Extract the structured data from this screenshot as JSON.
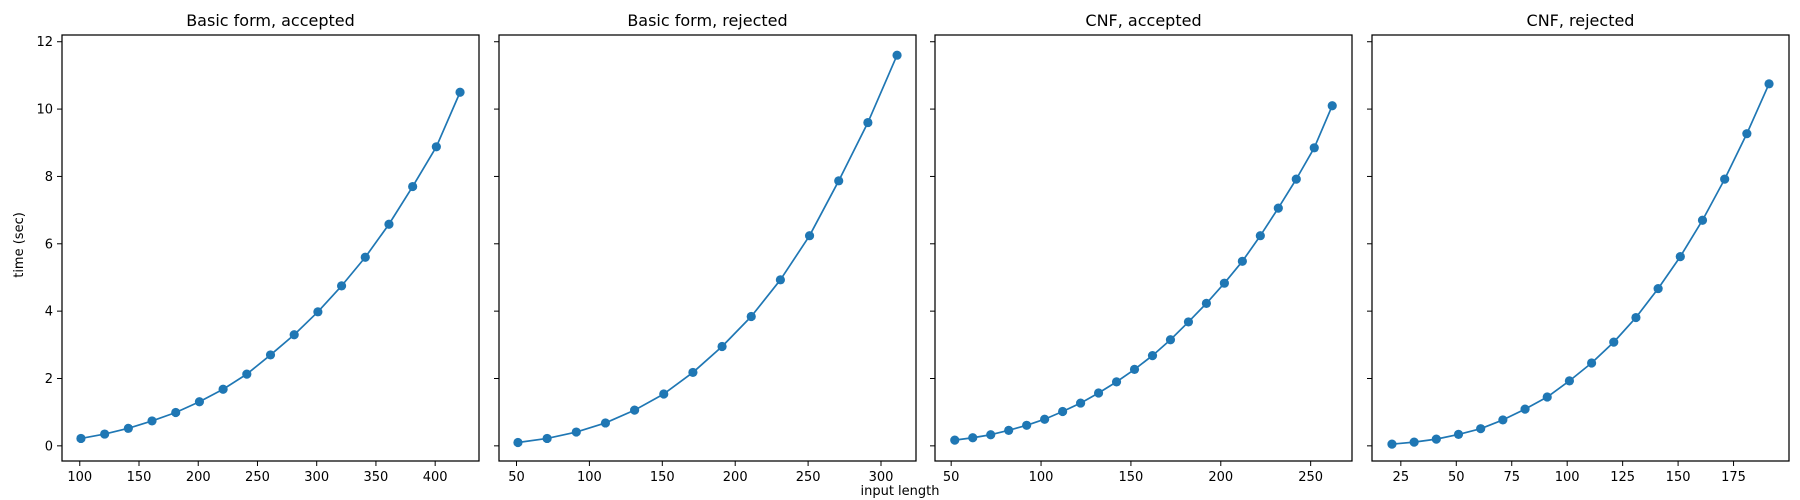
{
  "figure": {
    "ylabel": "time (sec)",
    "xlabel": "input length",
    "series_color": "#1f77b4",
    "shared_y": true
  },
  "chart_data": [
    {
      "type": "line",
      "title": "Basic form, accepted",
      "x": [
        101,
        121,
        141,
        161,
        181,
        201,
        221,
        241,
        261,
        281,
        301,
        321,
        341,
        361,
        381,
        401,
        421
      ],
      "y": [
        0.22,
        0.35,
        0.52,
        0.74,
        0.99,
        1.31,
        1.68,
        2.13,
        2.7,
        3.3,
        3.98,
        4.75,
        5.6,
        6.58,
        7.7,
        8.88,
        10.5
      ],
      "xlim": [
        85,
        437
      ],
      "xticks": [
        100,
        150,
        200,
        250,
        300,
        350,
        400
      ],
      "ylim": [
        -0.45,
        12.2
      ],
      "yticks": [
        0,
        2,
        4,
        6,
        8,
        10,
        12
      ],
      "xlabel": "",
      "ylabel": "time (sec)",
      "grid": false
    },
    {
      "type": "line",
      "title": "Basic form, rejected",
      "x": [
        51,
        71,
        91,
        111,
        131,
        151,
        171,
        191,
        211,
        231,
        251,
        271,
        291,
        311
      ],
      "y": [
        0.1,
        0.22,
        0.41,
        0.68,
        1.06,
        1.54,
        2.18,
        2.95,
        3.84,
        4.93,
        6.24,
        7.87,
        9.6,
        11.6
      ],
      "xlim": [
        38,
        324
      ],
      "xticks": [
        50,
        100,
        150,
        200,
        250,
        300
      ],
      "ylim": [
        -0.45,
        12.2
      ],
      "yticks": [
        0,
        2,
        4,
        6,
        8,
        10,
        12
      ],
      "xlabel": "",
      "ylabel": "",
      "grid": false
    },
    {
      "type": "line",
      "title": "CNF, accepted",
      "x": [
        52,
        62,
        72,
        82,
        92,
        102,
        112,
        122,
        132,
        142,
        152,
        162,
        172,
        182,
        192,
        202,
        212,
        222,
        232,
        242,
        252,
        262
      ],
      "y": [
        0.17,
        0.24,
        0.33,
        0.46,
        0.61,
        0.79,
        1.02,
        1.27,
        1.57,
        1.9,
        2.27,
        2.68,
        3.15,
        3.68,
        4.23,
        4.83,
        5.48,
        6.24,
        7.06,
        7.92,
        8.85,
        10.1
      ],
      "xlim": [
        41,
        273
      ],
      "xticks": [
        50,
        100,
        150,
        200,
        250
      ],
      "ylim": [
        -0.45,
        12.2
      ],
      "yticks": [
        0,
        2,
        4,
        6,
        8,
        10,
        12
      ],
      "xlabel": "input length",
      "ylabel": "",
      "grid": false
    },
    {
      "type": "line",
      "title": "CNF, rejected",
      "x": [
        21,
        31,
        41,
        51,
        61,
        71,
        81,
        91,
        101,
        111,
        121,
        131,
        141,
        151,
        161,
        171,
        181,
        191
      ],
      "y": [
        0.05,
        0.11,
        0.2,
        0.34,
        0.51,
        0.77,
        1.09,
        1.45,
        1.93,
        2.46,
        3.08,
        3.81,
        4.67,
        5.62,
        6.7,
        7.92,
        9.27,
        10.75
      ],
      "xlim": [
        12,
        200
      ],
      "xticks": [
        25,
        50,
        75,
        100,
        125,
        150,
        175
      ],
      "ylim": [
        -0.45,
        12.2
      ],
      "yticks": [
        0,
        2,
        4,
        6,
        8,
        10,
        12
      ],
      "xlabel": "",
      "ylabel": "",
      "grid": false
    }
  ]
}
